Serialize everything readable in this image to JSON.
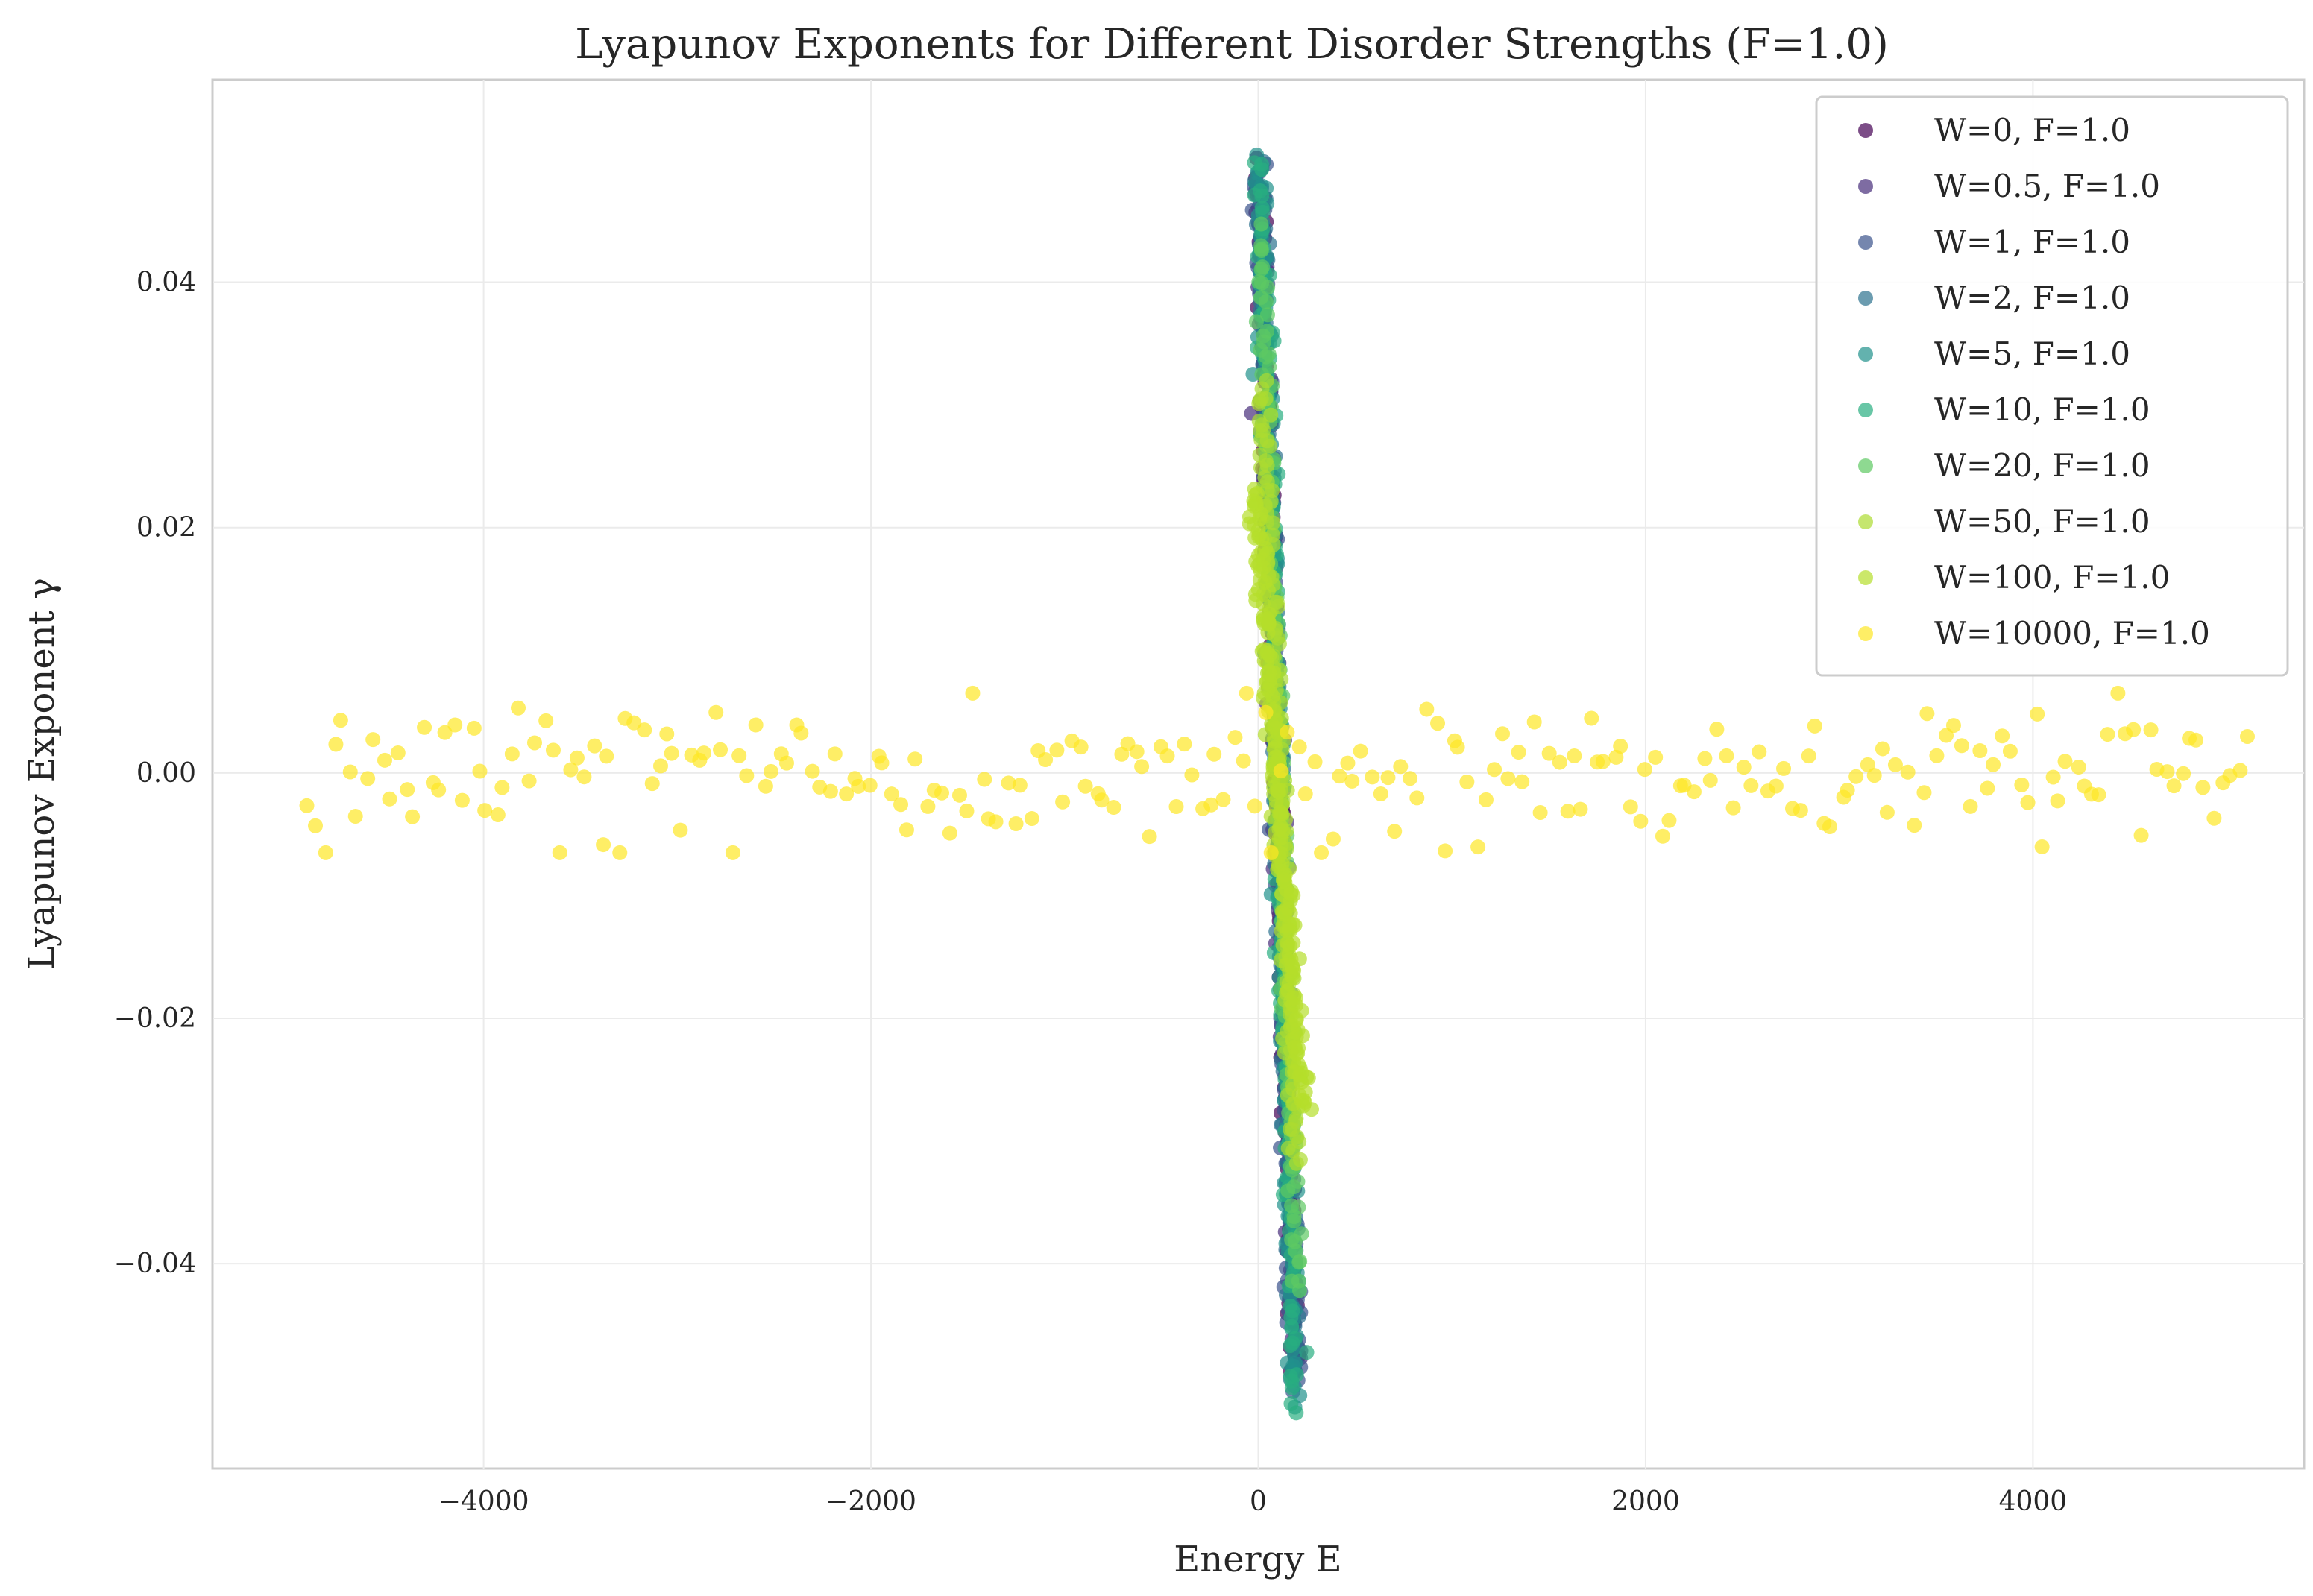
{
  "chart_data": {
    "type": "scatter",
    "title": "Lyapunov Exponents for Different Disorder Strengths (F=1.0)",
    "xlabel": "Energy E",
    "ylabel": "Lyapunov Exponent γ",
    "xlim": [
      -5400,
      5400
    ],
    "ylim": [
      -0.0567,
      0.0565
    ],
    "xticks": [
      -4000,
      -2000,
      0,
      2000,
      4000
    ],
    "xtick_labels": [
      "−4000",
      "−2000",
      "0",
      "2000",
      "4000"
    ],
    "yticks": [
      -0.04,
      -0.02,
      0.0,
      0.02,
      0.04
    ],
    "ytick_labels": [
      "−0.04",
      "−0.02",
      "0.00",
      "0.02",
      "0.04"
    ],
    "grid": true,
    "legend_position": "top-right",
    "series": [
      {
        "name": "W=0, F=1.0",
        "color": "#440154",
        "band": {
          "x_top": 5,
          "x_bottom": 190,
          "y_top": 0.049,
          "y_bottom": -0.049,
          "count": 150
        }
      },
      {
        "name": "W=0.5, F=1.0",
        "color": "#472d7b",
        "band": {
          "x_top": 5,
          "x_bottom": 190,
          "y_top": 0.049,
          "y_bottom": -0.049,
          "count": 150
        }
      },
      {
        "name": "W=1, F=1.0",
        "color": "#3b528b",
        "band": {
          "x_top": 5,
          "x_bottom": 192,
          "y_top": 0.0495,
          "y_bottom": -0.0495,
          "count": 150
        }
      },
      {
        "name": "W=2, F=1.0",
        "color": "#2c728e",
        "band": {
          "x_top": 8,
          "x_bottom": 193,
          "y_top": 0.05,
          "y_bottom": -0.05,
          "count": 150
        }
      },
      {
        "name": "W=5, F=1.0",
        "color": "#21918c",
        "band": {
          "x_top": 10,
          "x_bottom": 195,
          "y_top": 0.0505,
          "y_bottom": -0.0515,
          "count": 150
        }
      },
      {
        "name": "W=10, F=1.0",
        "color": "#28ae80",
        "band": {
          "x_top": 12,
          "x_bottom": 196,
          "y_top": 0.05,
          "y_bottom": -0.052,
          "count": 150
        }
      },
      {
        "name": "W=20, F=1.0",
        "color": "#5ec962",
        "band": {
          "x_top": 15,
          "x_bottom": 198,
          "y_top": 0.044,
          "y_bottom": -0.042,
          "count": 150
        }
      },
      {
        "name": "W=50, F=1.0",
        "color": "#addc30",
        "band": {
          "x_top": 20,
          "x_bottom": 200,
          "y_top": 0.032,
          "y_bottom": -0.032,
          "count": 150
        }
      },
      {
        "name": "W=100, F=1.0",
        "color": "#b5de2b",
        "band": {
          "x_top": -20,
          "x_bottom": 230,
          "y_top": 0.0235,
          "y_bottom": -0.0275,
          "count": 180
        }
      },
      {
        "name": "W=10000, F=1.0",
        "color": "#fde725",
        "spread": {
          "x_min": -4900,
          "x_max": 5100,
          "y_center": 0.0,
          "y_amp": 0.0065,
          "count": 240
        }
      }
    ]
  }
}
